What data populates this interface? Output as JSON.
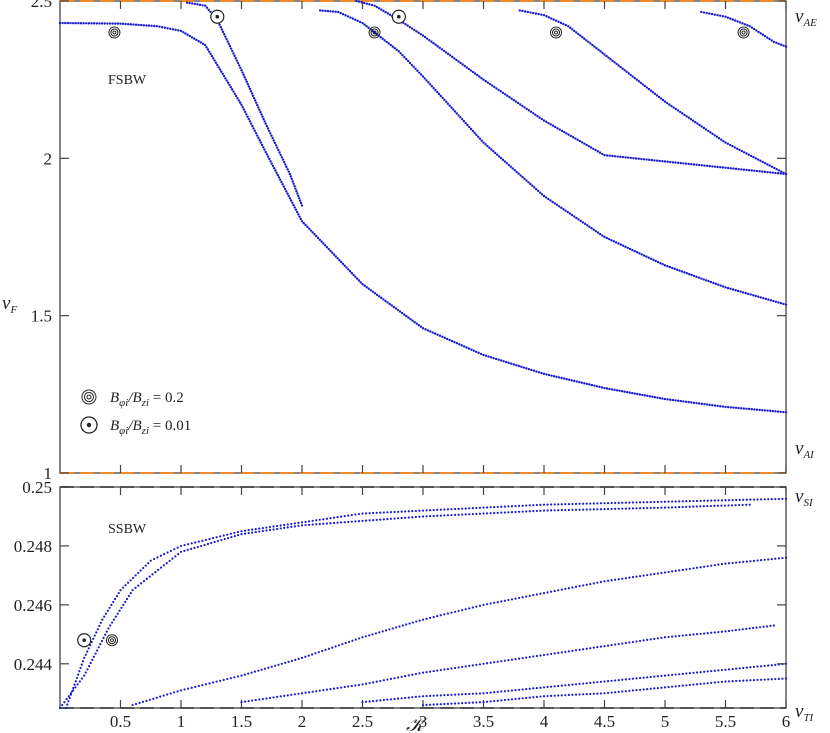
{
  "chart_data": [
    {
      "type": "scatter",
      "panel_label": "FSBW",
      "ylabel": "v_F",
      "xlim": [
        0,
        6
      ],
      "ylim": [
        1,
        2.5
      ],
      "y_ticks": [
        "1",
        "1.5",
        "2",
        "2.5"
      ],
      "reference_lines": [
        {
          "y": 2.5,
          "label": "v_AE",
          "color": "#ee8a2a"
        },
        {
          "y": 1.0,
          "label": "v_AI",
          "color": "#ee8a2a"
        }
      ],
      "markers": [
        {
          "symbol": "spiral",
          "x": 0.45,
          "y": 2.4
        },
        {
          "symbol": "dot-circle",
          "x": 1.3,
          "y": 2.45
        },
        {
          "symbol": "spiral",
          "x": 2.6,
          "y": 2.4
        },
        {
          "symbol": "dot-circle",
          "x": 2.8,
          "y": 2.45
        },
        {
          "symbol": "spiral",
          "x": 4.1,
          "y": 2.4
        },
        {
          "symbol": "spiral",
          "x": 5.65,
          "y": 2.4
        }
      ],
      "legend": [
        {
          "symbol": "spiral",
          "text": "B_φi/B_zi = 0.2"
        },
        {
          "symbol": "dot-circle",
          "text": "B_φi/B_zi = 0.01"
        }
      ],
      "series": [
        {
          "values": [
            [
              0.0,
              2.43
            ],
            [
              0.5,
              2.428
            ],
            [
              0.8,
              2.42
            ],
            [
              1.0,
              2.405
            ],
            [
              1.2,
              2.36
            ],
            [
              1.5,
              2.17
            ],
            [
              1.7,
              2.02
            ],
            [
              2.0,
              1.8
            ],
            [
              2.5,
              1.6
            ],
            [
              3.0,
              1.46
            ],
            [
              3.5,
              1.375
            ],
            [
              4.0,
              1.315
            ],
            [
              4.5,
              1.27
            ],
            [
              5.0,
              1.235
            ],
            [
              5.5,
              1.21
            ],
            [
              6.0,
              1.193
            ]
          ]
        },
        {
          "values": [
            [
              1.05,
              2.495
            ],
            [
              1.2,
              2.485
            ],
            [
              1.3,
              2.44
            ],
            [
              1.5,
              2.28
            ],
            [
              1.7,
              2.11
            ],
            [
              1.9,
              1.95
            ],
            [
              2.0,
              1.85
            ]
          ]
        },
        {
          "values": [
            [
              2.15,
              2.47
            ],
            [
              2.3,
              2.465
            ],
            [
              2.5,
              2.43
            ],
            [
              2.8,
              2.34
            ],
            [
              3.0,
              2.26
            ],
            [
              3.5,
              2.05
            ],
            [
              4.0,
              1.88
            ],
            [
              4.5,
              1.75
            ],
            [
              5.0,
              1.66
            ],
            [
              5.5,
              1.59
            ],
            [
              6.0,
              1.535
            ]
          ]
        },
        {
          "values": [
            [
              2.45,
              2.5
            ],
            [
              2.6,
              2.485
            ],
            [
              2.8,
              2.44
            ],
            [
              3.0,
              2.39
            ],
            [
              3.5,
              2.25
            ],
            [
              4.0,
              2.12
            ],
            [
              4.5,
              2.01
            ],
            [
              5.0,
              1.99
            ],
            [
              5.5,
              1.97
            ],
            [
              6.0,
              1.95
            ]
          ]
        },
        {
          "values": [
            [
              3.8,
              2.47
            ],
            [
              4.0,
              2.455
            ],
            [
              4.2,
              2.42
            ],
            [
              4.5,
              2.33
            ],
            [
              5.0,
              2.18
            ],
            [
              5.5,
              2.05
            ],
            [
              6.0,
              1.95
            ]
          ]
        },
        {
          "values": [
            [
              5.3,
              2.465
            ],
            [
              5.5,
              2.45
            ],
            [
              5.7,
              2.42
            ],
            [
              5.9,
              2.37
            ],
            [
              6.0,
              2.355
            ]
          ]
        }
      ]
    },
    {
      "type": "scatter",
      "panel_label": "SSBW",
      "xlabel": "𝒦",
      "xlim": [
        0,
        6
      ],
      "ylim": [
        0.2425,
        0.25
      ],
      "x_ticks": [
        "0.5",
        "1",
        "1.5",
        "2",
        "2.5",
        "3",
        "3.5",
        "4",
        "4.5",
        "5",
        "5.5",
        "6"
      ],
      "y_ticks": [
        "0.244",
        "0.246",
        "0.248",
        "0.25"
      ],
      "reference_lines": [
        {
          "y": 0.25,
          "label": "v_SI",
          "color": "#555555"
        },
        {
          "y": 0.2425,
          "label": "v_TI",
          "color": "#555555"
        }
      ],
      "markers": [
        {
          "symbol": "dot-circle",
          "x": 0.2,
          "y": 0.2448
        },
        {
          "symbol": "spiral",
          "x": 0.43,
          "y": 0.2448
        }
      ],
      "series": [
        {
          "values": [
            [
              0.05,
              0.2425
            ],
            [
              0.2,
              0.2442
            ],
            [
              0.35,
              0.2455
            ],
            [
              0.5,
              0.2465
            ],
            [
              0.75,
              0.2475
            ],
            [
              1.0,
              0.248
            ],
            [
              1.5,
              0.2485
            ],
            [
              2.0,
              0.2488
            ],
            [
              2.5,
              0.2491
            ],
            [
              3.0,
              0.2492
            ],
            [
              4.0,
              0.2494
            ],
            [
              5.0,
              0.2495
            ],
            [
              6.0,
              0.2496
            ]
          ]
        },
        {
          "values": [
            [
              0.0,
              0.2425
            ],
            [
              0.2,
              0.2436
            ],
            [
              0.4,
              0.2452
            ],
            [
              0.6,
              0.2465
            ],
            [
              1.0,
              0.2478
            ],
            [
              1.5,
              0.2484
            ],
            [
              2.0,
              0.2487
            ],
            [
              3.0,
              0.249
            ],
            [
              4.0,
              0.2492
            ],
            [
              5.0,
              0.2493
            ],
            [
              5.7,
              0.2494
            ]
          ]
        },
        {
          "values": [
            [
              0.6,
              0.2426
            ],
            [
              1.0,
              0.2431
            ],
            [
              1.5,
              0.2436
            ],
            [
              2.0,
              0.2442
            ],
            [
              2.5,
              0.2449
            ],
            [
              3.0,
              0.2455
            ],
            [
              3.5,
              0.246
            ],
            [
              4.0,
              0.2464
            ],
            [
              4.5,
              0.2468
            ],
            [
              5.0,
              0.2471
            ],
            [
              5.5,
              0.2474
            ],
            [
              6.0,
              0.2476
            ]
          ]
        },
        {
          "values": [
            [
              1.5,
              0.2427
            ],
            [
              2.0,
              0.243
            ],
            [
              2.5,
              0.2433
            ],
            [
              3.0,
              0.2437
            ],
            [
              3.5,
              0.244
            ],
            [
              4.0,
              0.2443
            ],
            [
              4.5,
              0.2446
            ],
            [
              5.0,
              0.2449
            ],
            [
              5.5,
              0.2451
            ],
            [
              5.9,
              0.2453
            ]
          ]
        },
        {
          "values": [
            [
              2.5,
              0.2427
            ],
            [
              3.0,
              0.2429
            ],
            [
              3.5,
              0.243
            ],
            [
              4.0,
              0.2432
            ],
            [
              4.5,
              0.2434
            ],
            [
              5.0,
              0.2436
            ],
            [
              5.5,
              0.2438
            ],
            [
              6.0,
              0.244
            ]
          ]
        },
        {
          "values": [
            [
              3.0,
              0.2426
            ],
            [
              3.5,
              0.2427
            ],
            [
              4.0,
              0.2429
            ],
            [
              4.5,
              0.243
            ],
            [
              5.0,
              0.2432
            ],
            [
              5.5,
              0.2434
            ],
            [
              6.0,
              0.2435
            ]
          ]
        }
      ]
    }
  ],
  "colors": {
    "data": "#1a1acd",
    "alfven_lines": "#ee8a2a",
    "sound_lines": "#555555",
    "axis": "#444444"
  }
}
